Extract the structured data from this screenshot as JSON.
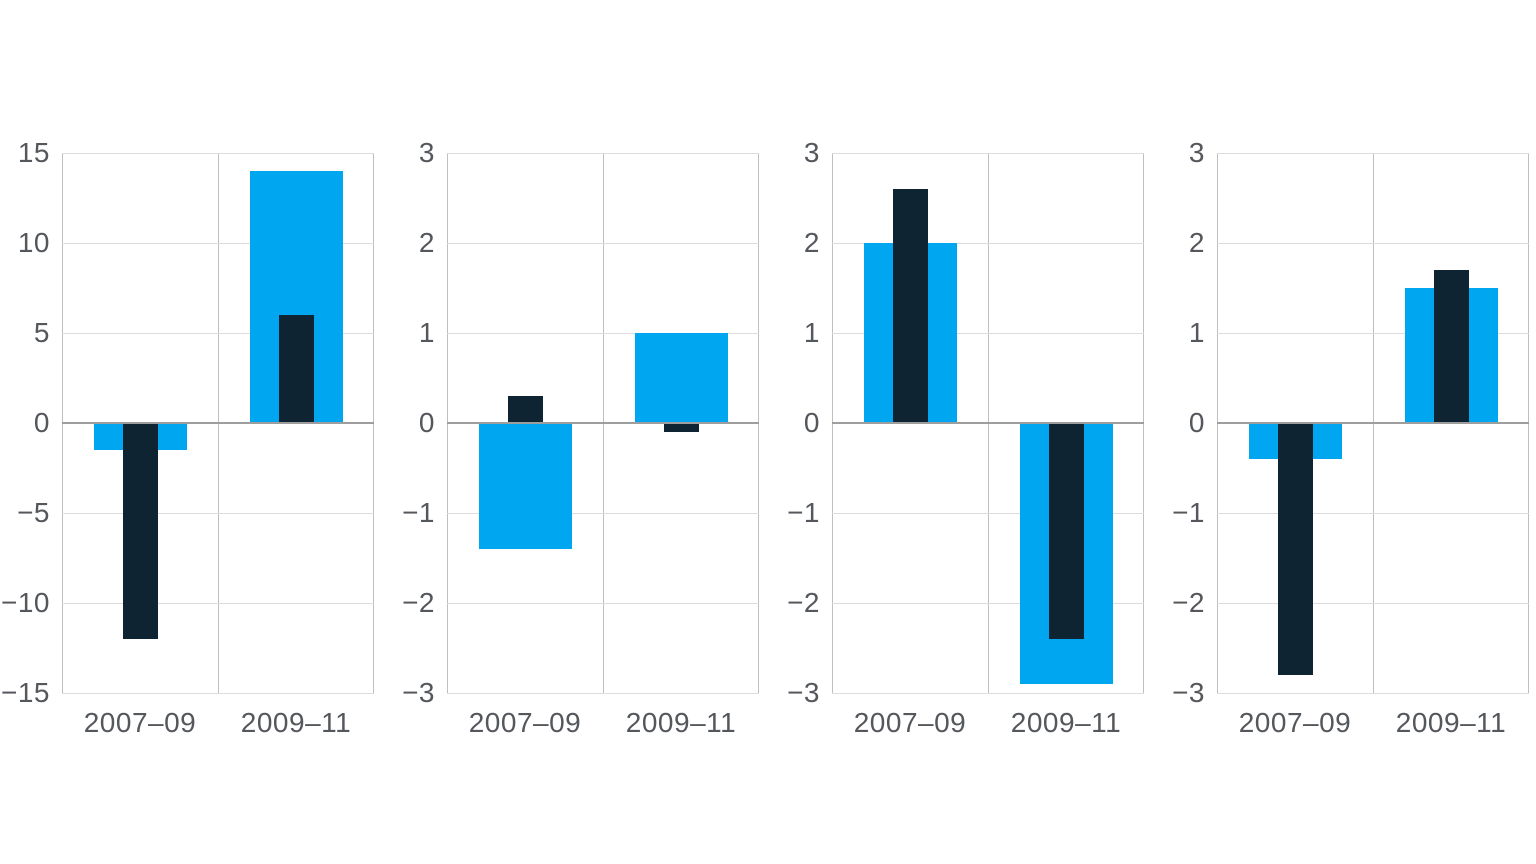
{
  "figure": {
    "background": "#ffffff",
    "panel_count": 4
  },
  "colors": {
    "light_blue": "#00a6f0",
    "dark_navy": "#0f2433",
    "gridline": "#dcdcdc",
    "zero_line": "#9e9e9e",
    "plot_border_line": "#bfbfbf",
    "label_text": "#54575b"
  },
  "chart_data": [
    {
      "type": "bar",
      "categories": [
        "2007–09",
        "2009–11"
      ],
      "series": [
        {
          "name": "light-blue-wide",
          "color_key": "light_blue",
          "values": [
            -1.5,
            14
          ]
        },
        {
          "name": "dark-navy-narrow",
          "color_key": "dark_navy",
          "values": [
            -12,
            6
          ]
        }
      ],
      "ylim": [
        -15,
        15
      ],
      "ytick_step": 5,
      "ytick_labels": [
        "15",
        "10",
        "5",
        "0",
        "−5",
        "−10",
        "−15"
      ],
      "title": "",
      "xlabel": "",
      "ylabel": "",
      "grid": true,
      "legend": "none"
    },
    {
      "type": "bar",
      "categories": [
        "2007–09",
        "2009–11"
      ],
      "series": [
        {
          "name": "light-blue-wide",
          "color_key": "light_blue",
          "values": [
            -1.4,
            1.0
          ]
        },
        {
          "name": "dark-navy-narrow",
          "color_key": "dark_navy",
          "values": [
            0.3,
            -0.1
          ]
        }
      ],
      "ylim": [
        -3,
        3
      ],
      "ytick_step": 1,
      "ytick_labels": [
        "3",
        "2",
        "1",
        "0",
        "−1",
        "−2",
        "−3"
      ],
      "title": "",
      "xlabel": "",
      "ylabel": "",
      "grid": true,
      "legend": "none"
    },
    {
      "type": "bar",
      "categories": [
        "2007–09",
        "2009–11"
      ],
      "series": [
        {
          "name": "light-blue-wide",
          "color_key": "light_blue",
          "values": [
            2.0,
            -2.9
          ]
        },
        {
          "name": "dark-navy-narrow",
          "color_key": "dark_navy",
          "values": [
            2.6,
            -2.4
          ]
        }
      ],
      "ylim": [
        -3,
        3
      ],
      "ytick_step": 1,
      "ytick_labels": [
        "3",
        "2",
        "1",
        "0",
        "−1",
        "−2",
        "−3"
      ],
      "title": "",
      "xlabel": "",
      "ylabel": "",
      "grid": true,
      "legend": "none"
    },
    {
      "type": "bar",
      "categories": [
        "2007–09",
        "2009–11"
      ],
      "series": [
        {
          "name": "light-blue-wide",
          "color_key": "light_blue",
          "values": [
            -0.4,
            1.5
          ]
        },
        {
          "name": "dark-navy-narrow",
          "color_key": "dark_navy",
          "values": [
            -2.8,
            1.7
          ]
        }
      ],
      "ylim": [
        -3,
        3
      ],
      "ytick_step": 1,
      "ytick_labels": [
        "3",
        "2",
        "1",
        "0",
        "−1",
        "−2",
        "−3"
      ],
      "title": "",
      "xlabel": "",
      "ylabel": "",
      "grid": true,
      "legend": "none"
    }
  ]
}
